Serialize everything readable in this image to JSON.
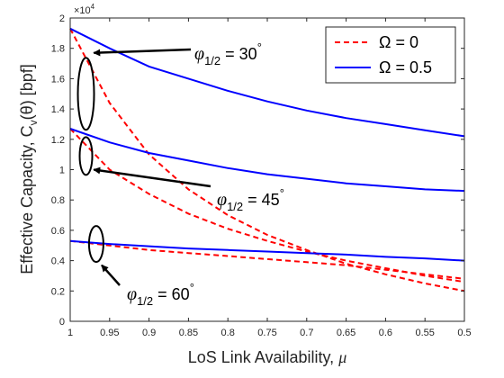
{
  "chart_data": {
    "type": "line",
    "title": "",
    "xlabel": "LoS Link Availability, μ",
    "ylabel": "Effective Capacity, Cv(θ) [bpf]",
    "ylabel_parts": {
      "main": "Effective Capacity, C",
      "sub": "v",
      "arg": "(θ) [bpf]"
    },
    "xlabel_parts": {
      "main": "LoS Link Availability, ",
      "sym": "μ"
    },
    "y_exponent": "×10⁴",
    "y_exponent_parts": {
      "base": "×10",
      "exp": "4"
    },
    "xlim": [
      1,
      0.5
    ],
    "x_reversed": true,
    "ylim": [
      0,
      2
    ],
    "xticks": [
      1,
      0.95,
      0.9,
      0.85,
      0.8,
      0.75,
      0.7,
      0.65,
      0.6,
      0.55,
      0.5
    ],
    "xtick_labels": [
      "1",
      "0.95",
      "0.9",
      "0.85",
      "0.8",
      "0.75",
      "0.7",
      "0.65",
      "0.6",
      "0.55",
      "0.5"
    ],
    "yticks": [
      0,
      0.2,
      0.4,
      0.6,
      0.8,
      1,
      1.2,
      1.4,
      1.6,
      1.8,
      2
    ],
    "ytick_labels": [
      "0",
      "0.2",
      "0.4",
      "0.6",
      "0.8",
      "1",
      "1.2",
      "1.4",
      "1.6",
      "1.8",
      "2"
    ],
    "grid": false,
    "legend_position": "top-right",
    "legend": [
      {
        "label": "Ω = 0",
        "color": "#ff0000",
        "style": "dashed"
      },
      {
        "label": "Ω = 0.5",
        "color": "#0000ff",
        "style": "solid"
      }
    ],
    "x": [
      1,
      0.95,
      0.9,
      0.85,
      0.8,
      0.75,
      0.7,
      0.65,
      0.6,
      0.55,
      0.5
    ],
    "series": [
      {
        "group": "Ω = 0, φ1/2 = 30°",
        "color": "#ff0000",
        "style": "dashed",
        "values": [
          1.93,
          1.44,
          1.1,
          0.87,
          0.7,
          0.57,
          0.47,
          0.38,
          0.31,
          0.25,
          0.2
        ]
      },
      {
        "group": "Ω = 0, φ1/2 = 45°",
        "color": "#ff0000",
        "style": "dashed",
        "values": [
          1.27,
          1.0,
          0.84,
          0.71,
          0.61,
          0.53,
          0.46,
          0.4,
          0.35,
          0.3,
          0.26
        ]
      },
      {
        "group": "Ω = 0, φ1/2 = 60°",
        "color": "#ff0000",
        "style": "dashed",
        "values": [
          0.53,
          0.5,
          0.47,
          0.45,
          0.43,
          0.41,
          0.39,
          0.37,
          0.34,
          0.31,
          0.28
        ]
      },
      {
        "group": "Ω = 0.5, φ1/2 = 30°",
        "color": "#0000ff",
        "style": "solid",
        "values": [
          1.93,
          1.8,
          1.68,
          1.6,
          1.52,
          1.45,
          1.39,
          1.34,
          1.3,
          1.26,
          1.22
        ]
      },
      {
        "group": "Ω = 0.5, φ1/2 = 45°",
        "color": "#0000ff",
        "style": "solid",
        "values": [
          1.27,
          1.18,
          1.11,
          1.06,
          1.01,
          0.97,
          0.94,
          0.91,
          0.89,
          0.87,
          0.86
        ]
      },
      {
        "group": "Ω = 0.5, φ1/2 = 60°",
        "color": "#0000ff",
        "style": "solid",
        "values": [
          0.53,
          0.51,
          0.495,
          0.48,
          0.47,
          0.46,
          0.45,
          0.44,
          0.425,
          0.415,
          0.4
        ]
      }
    ],
    "annotations": [
      {
        "symbol": "φ",
        "sub": "1/2",
        "text": " = 30",
        "degree": "°",
        "ellipse_x": 0.98,
        "ellipse_y": 1.5,
        "arrow_to_x": 0.97,
        "arrow_to_y": 1.77
      },
      {
        "symbol": "φ",
        "sub": "1/2",
        "text": " = 45",
        "degree": "°",
        "ellipse_x": 0.98,
        "ellipse_y": 1.09,
        "arrow_to_x": 0.97,
        "arrow_to_y": 1.0
      },
      {
        "symbol": "φ",
        "sub": "1/2",
        "text": " = 60",
        "degree": "°",
        "ellipse_x": 0.967,
        "ellipse_y": 0.51,
        "arrow_to_x": 0.96,
        "arrow_to_y": 0.37
      }
    ]
  }
}
